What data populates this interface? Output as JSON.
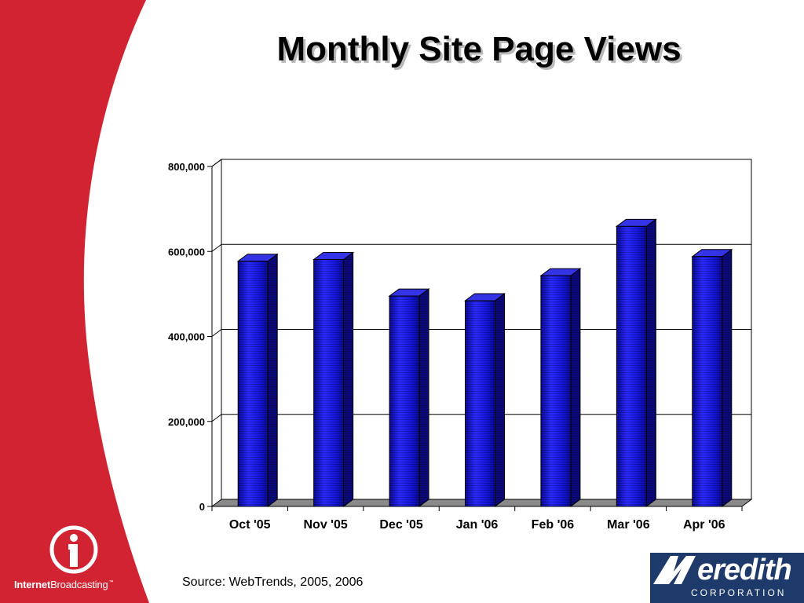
{
  "slide": {
    "title": "Monthly Site Page Views",
    "source": "Source: WebTrends, 2005, 2006"
  },
  "chart_data": {
    "type": "bar",
    "categories": [
      "Oct '05",
      "Nov '05",
      "Dec '05",
      "Jan '06",
      "Feb '06",
      "Mar '06",
      "Apr '06"
    ],
    "values": [
      577000,
      581000,
      495000,
      484000,
      543000,
      659000,
      588000
    ],
    "yticks": [
      0,
      200000,
      400000,
      600000,
      800000
    ],
    "ytick_labels": [
      "0",
      "200,000",
      "400,000",
      "600,000",
      "800,000"
    ],
    "ylim": [
      0,
      800000
    ],
    "title": "",
    "xlabel": "",
    "ylabel": "",
    "grid": true,
    "bar_color": "#1414d8",
    "style": "3d"
  },
  "logos": {
    "left": {
      "name": "InternetBroadcasting",
      "bold_part": "Internet",
      "rest": "Broadcasting",
      "mark": "™"
    },
    "right": {
      "name": "Meredith",
      "wordmark": "eredith",
      "subtitle": "CORPORATION"
    }
  },
  "colors": {
    "band": "#d22332",
    "bar": "#1414d8",
    "meredith": "#1e3a6a"
  }
}
